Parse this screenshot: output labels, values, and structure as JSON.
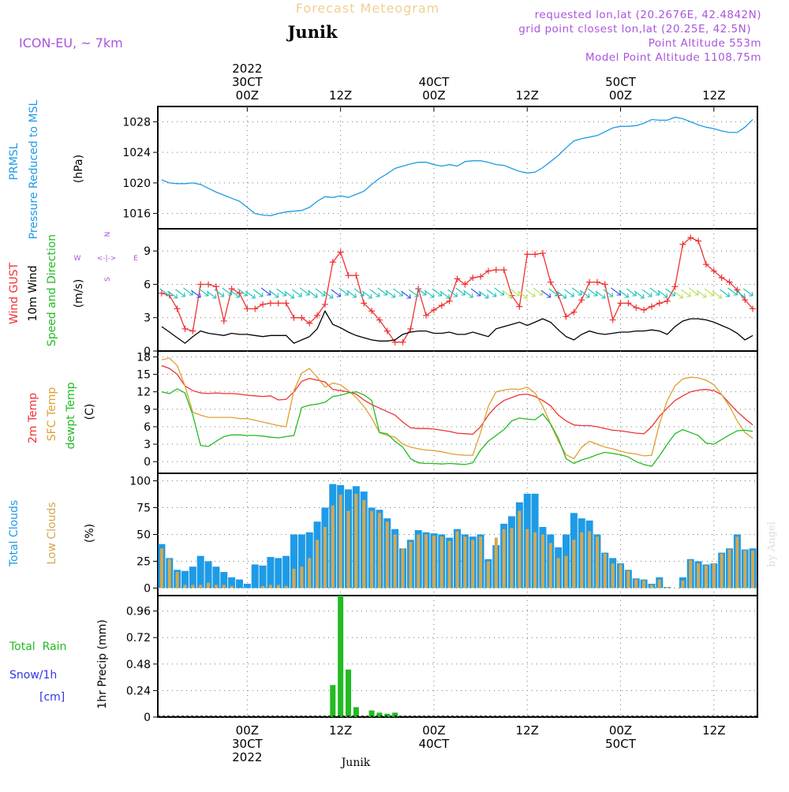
{
  "header": {
    "title": "Forecast Meteogram",
    "location": "Junik",
    "model": "ICON-EU, ~ 7km",
    "requested": "requested lon,lat (20.2676E, 42.4842N)",
    "gridpoint": "grid point closest lon,lat (20.25E, 42.5N)",
    "altitude": "Point Altitude 553m",
    "model_altitude": "Model Point Altitude 1108.75m",
    "footer_location": "Junik",
    "watermark": "by Angel"
  },
  "colors": {
    "pressure": "#1e9be6",
    "gust": "#ee3333",
    "wind": "#000000",
    "temp2m": "#ee3333",
    "sfc": "#e0a030",
    "dewpt": "#22bb22",
    "total_clouds": "#1e9be6",
    "low_clouds": "#d4a850",
    "rain": "#22bb22",
    "snow": "#3333ee",
    "purple": "#aa55dd",
    "title": "#f0d090"
  },
  "time_axis": {
    "top": [
      {
        "t": 24,
        "line1": "2022",
        "line2": "30CT",
        "line3": "00Z"
      },
      {
        "t": 36,
        "line1": "",
        "line2": "",
        "line3": "12Z"
      },
      {
        "t": 48,
        "line1": "",
        "line2": "40CT",
        "line3": "00Z"
      },
      {
        "t": 60,
        "line1": "",
        "line2": "",
        "line3": "12Z"
      },
      {
        "t": 72,
        "line1": "",
        "line2": "50CT",
        "line3": "00Z"
      },
      {
        "t": 84,
        "line1": "",
        "line2": "",
        "line3": "12Z"
      }
    ],
    "bottom": [
      {
        "t": 24,
        "line1": "00Z",
        "line2": "30CT",
        "line3": "2022"
      },
      {
        "t": 36,
        "line1": "12Z",
        "line2": "",
        "line3": ""
      },
      {
        "t": 48,
        "line1": "00Z",
        "line2": "40CT",
        "line3": ""
      },
      {
        "t": 60,
        "line1": "12Z",
        "line2": "",
        "line3": ""
      },
      {
        "t": 72,
        "line1": "00Z",
        "line2": "50CT",
        "line3": ""
      },
      {
        "t": 84,
        "line1": "12Z",
        "line2": "",
        "line3": ""
      }
    ]
  },
  "chart_data": [
    {
      "type": "line",
      "panel": "pressure",
      "ylabel": [
        "PRMSL",
        "Pressure Reduced to MSL"
      ],
      "unit": "(hPa)",
      "ylim": [
        1014,
        1030
      ],
      "yticks": [
        1016,
        1020,
        1024,
        1028
      ],
      "x": [
        13,
        14,
        15,
        16,
        17,
        18,
        19,
        20,
        21,
        22,
        23,
        24,
        25,
        26,
        27,
        28,
        29,
        30,
        31,
        32,
        33,
        34,
        35,
        36,
        37,
        38,
        39,
        40,
        41,
        42,
        43,
        44,
        45,
        46,
        47,
        48,
        49,
        50,
        51,
        52,
        53,
        54,
        55,
        56,
        57,
        58,
        59,
        60,
        61,
        62,
        63,
        64,
        65,
        66,
        67,
        68,
        69,
        70,
        71,
        72,
        73,
        74,
        75,
        76,
        77,
        78,
        79,
        80,
        81,
        82,
        83,
        84,
        85,
        86,
        87,
        88,
        89
      ],
      "series": [
        {
          "values": [
            1020.4,
            1020.0,
            1019.9,
            1019.9,
            1020.0,
            1019.8,
            1019.3,
            1018.8,
            1018.4,
            1018.0,
            1017.6,
            1016.8,
            1016.0,
            1015.8,
            1015.7,
            1016.0,
            1016.2,
            1016.3,
            1016.4,
            1016.8,
            1017.6,
            1018.2,
            1018.1,
            1018.3,
            1018.1,
            1018.5,
            1018.9,
            1019.8,
            1020.6,
            1021.2,
            1021.9,
            1022.2,
            1022.5,
            1022.7,
            1022.7,
            1022.4,
            1022.2,
            1022.4,
            1022.2,
            1022.8,
            1022.9,
            1022.9,
            1022.7,
            1022.4,
            1022.3,
            1021.9,
            1021.5,
            1021.3,
            1021.4,
            1022.0,
            1022.8,
            1023.6,
            1024.6,
            1025.5,
            1025.8,
            1026.0,
            1026.2,
            1026.7,
            1027.2,
            1027.4,
            1027.4,
            1027.5,
            1027.8,
            1028.3,
            1028.2,
            1028.2,
            1028.6,
            1028.4,
            1028.0,
            1027.6,
            1027.3,
            1027.1,
            1026.8,
            1026.6,
            1026.6,
            1027.3,
            1028.3
          ]
        }
      ]
    },
    {
      "type": "line",
      "panel": "wind",
      "ylabel": [
        "Wind GUST",
        "10m Wind",
        "Speed and Direction"
      ],
      "unit": "(m/s)",
      "compass": {
        "n": "N",
        "w": "W",
        "e": "E",
        "s": "S",
        "arrow": "<-|->"
      },
      "ylim": [
        0,
        11
      ],
      "yticks": [
        0,
        3,
        6,
        9
      ],
      "x": [
        13,
        14,
        15,
        16,
        17,
        18,
        19,
        20,
        21,
        22,
        23,
        24,
        25,
        26,
        27,
        28,
        29,
        30,
        31,
        32,
        33,
        34,
        35,
        36,
        37,
        38,
        39,
        40,
        41,
        42,
        43,
        44,
        45,
        46,
        47,
        48,
        49,
        50,
        51,
        52,
        53,
        54,
        55,
        56,
        57,
        58,
        59,
        60,
        61,
        62,
        63,
        64,
        65,
        66,
        67,
        68,
        69,
        70,
        71,
        72,
        73,
        74,
        75,
        76,
        77,
        78,
        79,
        80,
        81,
        82,
        83,
        84,
        85,
        86,
        87,
        88,
        89
      ],
      "series": [
        {
          "name": "Wind GUST",
          "values": [
            5.2,
            5.0,
            3.8,
            2.0,
            1.8,
            6.0,
            6.0,
            5.8,
            2.7,
            5.6,
            5.2,
            3.8,
            3.8,
            4.2,
            4.3,
            4.3,
            4.3,
            3.0,
            3.0,
            2.5,
            3.2,
            4.2,
            8.0,
            8.9,
            6.8,
            6.8,
            4.3,
            3.6,
            2.8,
            1.8,
            0.8,
            0.8,
            2.0,
            5.6,
            3.2,
            3.7,
            4.1,
            4.5,
            6.5,
            6.0,
            6.6,
            6.7,
            7.2,
            7.3,
            7.3,
            5.0,
            4.0,
            8.7,
            8.7,
            8.8,
            6.2,
            5.0,
            3.1,
            3.5,
            4.6,
            6.2,
            6.2,
            6.0,
            2.8,
            4.3,
            4.3,
            3.9,
            3.7,
            4.0,
            4.3,
            4.5,
            5.8,
            9.6,
            10.2,
            9.9,
            7.8,
            7.2,
            6.6,
            6.2,
            5.5,
            4.6,
            3.8
          ]
        },
        {
          "name": "10m Wind",
          "values": [
            2.2,
            1.7,
            1.2,
            0.7,
            1.3,
            1.8,
            1.6,
            1.5,
            1.4,
            1.6,
            1.5,
            1.5,
            1.4,
            1.3,
            1.4,
            1.4,
            1.4,
            0.7,
            1.0,
            1.3,
            2.0,
            3.6,
            2.4,
            2.1,
            1.7,
            1.4,
            1.2,
            1.0,
            0.9,
            0.9,
            1.0,
            1.5,
            1.7,
            1.8,
            1.8,
            1.6,
            1.6,
            1.7,
            1.5,
            1.5,
            1.7,
            1.5,
            1.3,
            2.0,
            2.2,
            2.4,
            2.6,
            2.3,
            2.6,
            2.9,
            2.6,
            1.9,
            1.3,
            1.0,
            1.5,
            1.8,
            1.6,
            1.5,
            1.6,
            1.7,
            1.7,
            1.8,
            1.8,
            1.9,
            1.8,
            1.5,
            2.2,
            2.7,
            2.9,
            2.9,
            2.8,
            2.6,
            2.3,
            2.0,
            1.6,
            1.0,
            1.4
          ]
        }
      ]
    },
    {
      "type": "line",
      "panel": "temperature",
      "ylabel": [
        "2m Temp",
        "SFC Temp",
        "dewpt Temp"
      ],
      "unit": "(C)",
      "ylim": [
        -2,
        19
      ],
      "yticks": [
        0,
        3,
        6,
        9,
        12,
        15,
        18
      ],
      "x": [
        13,
        14,
        15,
        16,
        17,
        18,
        19,
        20,
        21,
        22,
        23,
        24,
        25,
        26,
        27,
        28,
        29,
        30,
        31,
        32,
        33,
        34,
        35,
        36,
        37,
        38,
        39,
        40,
        41,
        42,
        43,
        44,
        45,
        46,
        47,
        48,
        49,
        50,
        51,
        52,
        53,
        54,
        55,
        56,
        57,
        58,
        59,
        60,
        61,
        62,
        63,
        64,
        65,
        66,
        67,
        68,
        69,
        70,
        71,
        72,
        73,
        74,
        75,
        76,
        77,
        78,
        79,
        80,
        81,
        82,
        83,
        84,
        85,
        86,
        87,
        88,
        89
      ],
      "series": [
        {
          "name": "2m Temp",
          "values": [
            16.5,
            16.0,
            15.0,
            13.0,
            12.2,
            11.8,
            11.7,
            11.8,
            11.7,
            11.7,
            11.6,
            11.4,
            11.3,
            11.2,
            11.3,
            10.6,
            10.7,
            12.0,
            13.8,
            14.3,
            14.0,
            13.7,
            12.4,
            12.2,
            12.0,
            11.6,
            10.6,
            9.8,
            9.2,
            8.6,
            8.0,
            6.8,
            5.8,
            5.7,
            5.7,
            5.6,
            5.4,
            5.2,
            4.9,
            4.8,
            4.7,
            6.0,
            8.0,
            9.5,
            10.5,
            11.0,
            11.5,
            11.6,
            11.2,
            10.5,
            9.6,
            8.0,
            7.0,
            6.3,
            6.2,
            6.2,
            6.0,
            5.7,
            5.4,
            5.3,
            5.1,
            4.9,
            4.8,
            6.0,
            7.8,
            9.2,
            10.5,
            11.3,
            12.0,
            12.3,
            12.4,
            12.2,
            11.5,
            10.0,
            8.6,
            7.4,
            6.3
          ]
        },
        {
          "name": "SFC Temp",
          "values": [
            17.5,
            17.8,
            16.5,
            13.0,
            8.5,
            8.0,
            7.6,
            7.6,
            7.6,
            7.6,
            7.4,
            7.4,
            7.1,
            6.8,
            6.5,
            6.2,
            6.0,
            12.2,
            15.2,
            16.0,
            14.5,
            12.8,
            13.5,
            13.2,
            12.2,
            11.0,
            9.5,
            7.5,
            5.0,
            4.5,
            4.2,
            3.0,
            2.5,
            2.2,
            2.0,
            1.9,
            1.7,
            1.4,
            1.2,
            1.1,
            1.1,
            5.0,
            9.5,
            12.0,
            12.3,
            12.5,
            12.4,
            12.8,
            11.8,
            9.5,
            6.5,
            3.5,
            1.2,
            0.5,
            2.5,
            3.5,
            3.0,
            2.5,
            2.2,
            1.8,
            1.5,
            1.3,
            1.0,
            1.1,
            6.5,
            10.5,
            13.0,
            14.2,
            14.5,
            14.4,
            14.0,
            13.2,
            11.5,
            9.5,
            7.0,
            5.0,
            4.0
          ]
        },
        {
          "name": "dewpt Temp",
          "values": [
            12.0,
            11.7,
            12.5,
            11.8,
            8.0,
            2.8,
            2.6,
            3.5,
            4.3,
            4.6,
            4.6,
            4.5,
            4.5,
            4.4,
            4.2,
            4.1,
            4.3,
            4.5,
            9.3,
            9.7,
            9.9,
            10.2,
            11.2,
            11.4,
            11.8,
            12.0,
            11.5,
            10.5,
            5.0,
            4.8,
            3.5,
            2.5,
            0.5,
            -0.2,
            -0.3,
            -0.3,
            -0.4,
            -0.3,
            -0.4,
            -0.5,
            -0.2,
            2.0,
            3.5,
            4.5,
            5.5,
            7.0,
            7.5,
            7.3,
            7.2,
            8.2,
            6.5,
            4.0,
            0.5,
            -0.3,
            0.3,
            0.7,
            1.2,
            1.6,
            1.4,
            1.2,
            0.8,
            0.0,
            -0.5,
            -0.8,
            1.0,
            3.0,
            4.8,
            5.5,
            5.0,
            4.5,
            3.2,
            3.0,
            3.8,
            4.6,
            5.3,
            5.4,
            5.2
          ]
        }
      ]
    },
    {
      "type": "bar",
      "panel": "clouds",
      "ylabel": [
        "Total Clouds",
        "Low Clouds"
      ],
      "unit": "(%)",
      "ylim": [
        -7,
        107
      ],
      "yticks": [
        0,
        25,
        50,
        75,
        100
      ],
      "x": [
        13,
        14,
        15,
        16,
        17,
        18,
        19,
        20,
        21,
        22,
        23,
        24,
        25,
        26,
        27,
        28,
        29,
        30,
        31,
        32,
        33,
        34,
        35,
        36,
        37,
        38,
        39,
        40,
        41,
        42,
        43,
        44,
        45,
        46,
        47,
        48,
        49,
        50,
        51,
        52,
        53,
        54,
        55,
        56,
        57,
        58,
        59,
        60,
        61,
        62,
        63,
        64,
        65,
        66,
        67,
        68,
        69,
        70,
        71,
        72,
        73,
        74,
        75,
        76,
        77,
        78,
        79,
        80,
        81,
        82,
        83,
        84,
        85,
        86,
        87,
        88,
        89
      ],
      "series": [
        {
          "name": "Total Clouds",
          "values": [
            41,
            28,
            17,
            16,
            20,
            30,
            25,
            20,
            15,
            10,
            8,
            4,
            22,
            21,
            29,
            28,
            30,
            50,
            50,
            52,
            62,
            75,
            97,
            96,
            92,
            95,
            90,
            75,
            73,
            65,
            55,
            37,
            45,
            54,
            52,
            51,
            50,
            47,
            55,
            50,
            48,
            50,
            27,
            40,
            60,
            67,
            80,
            88,
            88,
            57,
            50,
            38,
            50,
            70,
            65,
            63,
            50,
            33,
            28,
            23,
            17,
            9,
            8,
            4,
            10,
            1,
            0,
            10,
            27,
            25,
            22,
            23,
            33,
            37,
            50,
            36,
            37
          ]
        },
        {
          "name": "Low Clouds",
          "values": [
            37,
            27,
            15,
            3,
            3,
            3,
            5,
            3,
            3,
            2,
            0,
            0,
            0,
            2,
            3,
            3,
            2,
            18,
            20,
            28,
            45,
            57,
            77,
            87,
            72,
            88,
            82,
            72,
            70,
            62,
            50,
            37,
            43,
            50,
            50,
            49,
            48,
            44,
            53,
            48,
            45,
            48,
            25,
            47,
            55,
            56,
            72,
            55,
            52,
            50,
            42,
            28,
            30,
            45,
            52,
            53,
            48,
            32,
            23,
            22,
            16,
            8,
            7,
            3,
            8,
            1,
            0,
            7,
            26,
            23,
            21,
            23,
            32,
            36,
            48,
            35,
            35
          ]
        }
      ]
    },
    {
      "type": "bar",
      "panel": "precip",
      "ylabel": [
        "1hr Precip (mm)"
      ],
      "side_labels": {
        "rain": "Total  Rain",
        "snow": "Snow/1h",
        "unit": "[cm]"
      },
      "ylim": [
        0,
        1.1
      ],
      "yticks": [
        0,
        0.24,
        0.48,
        0.72,
        0.96
      ],
      "ytick_labels": [
        "0",
        "0.24",
        "0.48",
        "0.72",
        "0.96"
      ],
      "x": [
        35,
        36,
        37,
        38,
        39,
        40,
        41,
        42,
        43
      ],
      "series": [
        {
          "name": "Total Rain",
          "values": [
            0.29,
            1.1,
            0.43,
            0.09,
            0.0,
            0.06,
            0.04,
            0.03,
            0.04
          ]
        }
      ]
    }
  ]
}
